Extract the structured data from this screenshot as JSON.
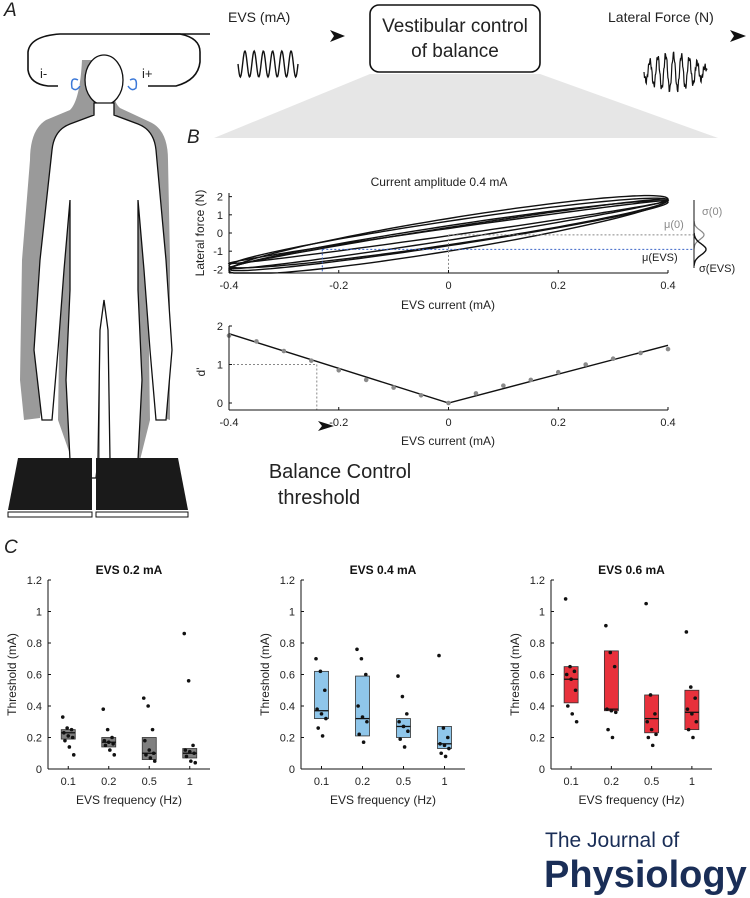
{
  "panels": {
    "a": "A",
    "b": "B",
    "c": "C"
  },
  "schematic": {
    "evs_label": "EVS (mA)",
    "box_line1": "Vestibular control",
    "box_line2": "of balance",
    "force_label": "Lateral Force (N)",
    "left_ear": "i-",
    "right_ear": "i+"
  },
  "threshold_label": {
    "line1": "Balance Control",
    "line2": "threshold"
  },
  "journal": {
    "line1": "The Journal of",
    "line2": "Physiology"
  },
  "colors": {
    "gray": "#7f7f7f",
    "blue": "#8fc6ea",
    "red": "#e8313c",
    "dark": "#222222",
    "journal": "#1a2e57",
    "guide_blue": "#3b64c8"
  },
  "chart_data": [
    {
      "id": "hysteresis",
      "type": "line",
      "title": "Current amplitude 0.4 mA",
      "xlabel": "EVS current (mA)",
      "ylabel": "Lateral force (N)",
      "xlim": [
        -0.4,
        0.4
      ],
      "ylim": [
        -2.2,
        2.2
      ],
      "xticks": [
        -0.4,
        -0.2,
        0,
        0.2,
        0.4
      ],
      "xtick_labels": [
        "-0.4",
        "-0.2",
        "0",
        "0.2",
        "0.4"
      ],
      "yticks": [
        -2,
        -1,
        0,
        1,
        2
      ],
      "ytick_labels": [
        "-2",
        "-1",
        "0",
        "1",
        "2"
      ],
      "loops": [
        {
          "slope": 4.7,
          "offset": -0.05,
          "width": 0.35
        },
        {
          "slope": 4.5,
          "offset": 0.0,
          "width": 0.65
        },
        {
          "slope": 4.9,
          "offset": -0.1,
          "width": 0.9
        },
        {
          "slope": 4.3,
          "offset": 0.05,
          "width": 0.2
        },
        {
          "slope": 4.6,
          "offset": -0.15,
          "width": 0.55
        }
      ],
      "guide_x": -0.23,
      "guide_y": -0.9,
      "mu0_y": -0.1,
      "annotations": {
        "mu0": "μ(0)",
        "sigma0": "σ(0)",
        "muevs": "μ(EVS)",
        "sigmaevs": "σ(EVS)"
      }
    },
    {
      "id": "dprime",
      "type": "line",
      "xlabel": "EVS current (mA)",
      "ylabel": "d'",
      "xlim": [
        -0.4,
        0.4
      ],
      "ylim": [
        0,
        2
      ],
      "xticks": [
        -0.4,
        -0.2,
        0,
        0.2,
        0.4
      ],
      "xtick_labels": [
        "-0.4",
        "-0.2",
        "0",
        "0.2",
        "0.4"
      ],
      "yticks": [
        0,
        1,
        2
      ],
      "ytick_labels": [
        "0",
        "1",
        "2"
      ],
      "x": [
        -0.4,
        -0.35,
        -0.3,
        -0.25,
        -0.2,
        -0.15,
        -0.1,
        -0.05,
        0,
        0.05,
        0.1,
        0.15,
        0.2,
        0.25,
        0.3,
        0.35,
        0.4
      ],
      "y": [
        1.75,
        1.6,
        1.35,
        1.1,
        0.85,
        0.6,
        0.4,
        0.2,
        0.0,
        0.25,
        0.45,
        0.6,
        0.8,
        1.0,
        1.15,
        1.3,
        1.4
      ],
      "fit_x": [
        -0.4,
        0,
        0.4
      ],
      "fit_y": [
        1.8,
        0.0,
        1.5
      ],
      "guide_x": -0.24,
      "guide_y": 1.0
    },
    {
      "id": "c1",
      "type": "box",
      "title": "EVS 0.2 mA",
      "color": "#7f7f7f",
      "xlabel": "EVS frequency (Hz)",
      "ylabel": "Threshold (mA)",
      "categories": [
        "0.1",
        "0.2",
        "0.5",
        "1"
      ],
      "ylim": [
        0,
        1.2
      ],
      "yticks": [
        0,
        0.2,
        0.4,
        0.6,
        0.8,
        1,
        1.2
      ],
      "ytick_labels": [
        "0",
        "0.2",
        "0.4",
        "0.6",
        "0.8",
        "1",
        "1.2"
      ],
      "boxes": [
        {
          "q1": 0.19,
          "median": 0.23,
          "q3": 0.25
        },
        {
          "q1": 0.14,
          "median": 0.17,
          "q3": 0.2
        },
        {
          "q1": 0.06,
          "median": 0.1,
          "q3": 0.2
        },
        {
          "q1": 0.07,
          "median": 0.1,
          "q3": 0.13
        }
      ],
      "points": [
        [
          0.33,
          0.26,
          0.25,
          0.23,
          0.21,
          0.2,
          0.18,
          0.14,
          0.09
        ],
        [
          0.38,
          0.25,
          0.2,
          0.18,
          0.17,
          0.16,
          0.15,
          0.12,
          0.09
        ],
        [
          0.45,
          0.4,
          0.25,
          0.18,
          0.12,
          0.1,
          0.09,
          0.07,
          0.05
        ],
        [
          0.86,
          0.56,
          0.15,
          0.12,
          0.11,
          0.1,
          0.08,
          0.05,
          0.04
        ]
      ]
    },
    {
      "id": "c2",
      "type": "box",
      "title": "EVS 0.4 mA",
      "color": "#8fc6ea",
      "xlabel": "EVS frequency (Hz)",
      "ylabel": "Threshold (mA)",
      "categories": [
        "0.1",
        "0.2",
        "0.5",
        "1"
      ],
      "ylim": [
        0,
        1.2
      ],
      "yticks": [
        0,
        0.2,
        0.4,
        0.6,
        0.8,
        1,
        1.2
      ],
      "ytick_labels": [
        "0",
        "0.2",
        "0.4",
        "0.6",
        "0.8",
        "1",
        "1.2"
      ],
      "boxes": [
        {
          "q1": 0.32,
          "median": 0.37,
          "q3": 0.62
        },
        {
          "q1": 0.21,
          "median": 0.32,
          "q3": 0.59
        },
        {
          "q1": 0.2,
          "median": 0.27,
          "q3": 0.32
        },
        {
          "q1": 0.13,
          "median": 0.16,
          "q3": 0.27
        }
      ],
      "points": [
        [
          0.7,
          0.62,
          0.5,
          0.38,
          0.35,
          0.32,
          0.26,
          0.21
        ],
        [
          0.76,
          0.7,
          0.6,
          0.4,
          0.33,
          0.3,
          0.22,
          0.17
        ],
        [
          0.59,
          0.46,
          0.35,
          0.3,
          0.27,
          0.24,
          0.19,
          0.14
        ],
        [
          0.72,
          0.26,
          0.2,
          0.16,
          0.15,
          0.13,
          0.1,
          0.08
        ]
      ]
    },
    {
      "id": "c3",
      "type": "box",
      "title": "EVS 0.6 mA",
      "color": "#e8313c",
      "xlabel": "EVS frequency (Hz)",
      "ylabel": "Threshold (mA)",
      "categories": [
        "0.1",
        "0.2",
        "0.5",
        "1"
      ],
      "ylim": [
        0,
        1.2
      ],
      "yticks": [
        0,
        0.2,
        0.4,
        0.6,
        0.8,
        1,
        1.2
      ],
      "ytick_labels": [
        "0",
        "0.2",
        "0.4",
        "0.6",
        "0.8",
        "1",
        "1.2"
      ],
      "boxes": [
        {
          "q1": 0.42,
          "median": 0.57,
          "q3": 0.65
        },
        {
          "q1": 0.37,
          "median": 0.38,
          "q3": 0.75
        },
        {
          "q1": 0.23,
          "median": 0.32,
          "q3": 0.47
        },
        {
          "q1": 0.25,
          "median": 0.36,
          "q3": 0.5
        }
      ],
      "points": [
        [
          1.08,
          0.65,
          0.62,
          0.6,
          0.57,
          0.5,
          0.4,
          0.35,
          0.3
        ],
        [
          0.91,
          0.74,
          0.65,
          0.38,
          0.37,
          0.36,
          0.25,
          0.2
        ],
        [
          1.05,
          0.47,
          0.35,
          0.3,
          0.25,
          0.22,
          0.2,
          0.15
        ],
        [
          0.87,
          0.52,
          0.45,
          0.38,
          0.35,
          0.3,
          0.25,
          0.2
        ]
      ]
    }
  ]
}
